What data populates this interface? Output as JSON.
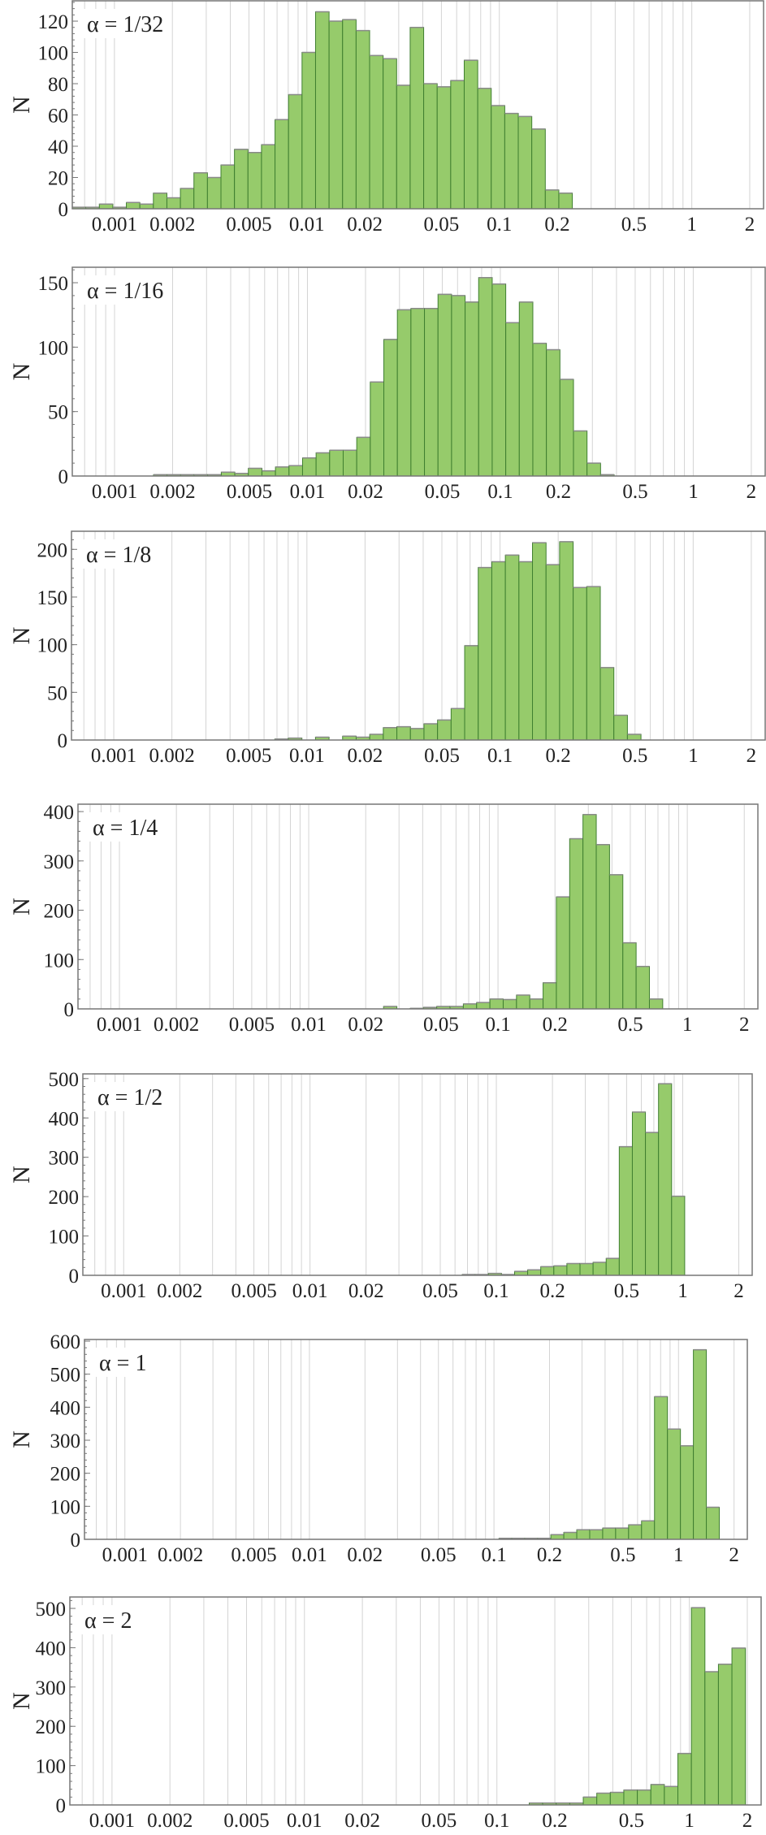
{
  "figure": {
    "colors": {
      "bar_fill": "#96cb6b",
      "bar_edge": "#3f7f30",
      "bar_top": "#8a8a8a",
      "grid": "#d4d4d4",
      "frame": "#777777",
      "text": "#222222"
    },
    "x_tick_labels": [
      "0.001",
      "0.002",
      "0.005",
      "0.01",
      "0.02",
      "0.05",
      "0.1",
      "0.2",
      "0.5",
      "1",
      "2"
    ],
    "x_tick_values": [
      0.001,
      0.002,
      0.005,
      0.01,
      0.02,
      0.05,
      0.1,
      0.2,
      0.5,
      1,
      2
    ]
  },
  "chart_data": [
    {
      "type": "bar",
      "histogram": true,
      "label": "α = 1/32",
      "ylabel": "N",
      "xlabel": "",
      "x_scale": "log",
      "xlim": [
        0.000604,
        2.36
      ],
      "grid": "vertical log grid",
      "ylim": [
        0,
        133
      ],
      "yticks": [
        "0",
        "20",
        "40",
        "60",
        "80",
        "100",
        "120"
      ],
      "first_bin_left": 0.000604,
      "bin_ratio": 1.1755,
      "counts": [
        1,
        1,
        3,
        1,
        4,
        3,
        10,
        7,
        13,
        23,
        20,
        28,
        38,
        36,
        41,
        57,
        73,
        100,
        126,
        120,
        121,
        114,
        98,
        96,
        79,
        116,
        80,
        78,
        82,
        95,
        77,
        66,
        61,
        59,
        51,
        12,
        10
      ]
    },
    {
      "type": "bar",
      "histogram": true,
      "label": "α = 1/16",
      "ylabel": "N",
      "xlabel": "",
      "x_scale": "log",
      "xlim": [
        0.000604,
        2.36
      ],
      "grid": "vertical log grid",
      "ylim": [
        0,
        162
      ],
      "yticks": [
        "0",
        "50",
        "100",
        "150"
      ],
      "first_bin_left": 0.001593,
      "bin_ratio": 1.1755,
      "counts": [
        1,
        1,
        1,
        1,
        1,
        3,
        2,
        6,
        4,
        7,
        8,
        14,
        18,
        20,
        20,
        30,
        73,
        106,
        129,
        130,
        130,
        141,
        140,
        135,
        154,
        149,
        119,
        135,
        103,
        98,
        75,
        35,
        10,
        1
      ]
    },
    {
      "type": "bar",
      "histogram": true,
      "label": "α = 1/8",
      "ylabel": "N",
      "xlabel": "",
      "x_scale": "log",
      "xlim": [
        0.000604,
        2.36
      ],
      "grid": "vertical log grid",
      "ylim": [
        0,
        219
      ],
      "yticks": [
        "0",
        "50",
        "100",
        "150",
        "200"
      ],
      "first_bin_left": 0.00682,
      "bin_ratio": 1.1755,
      "counts": [
        1,
        2,
        0,
        3,
        0,
        4,
        3,
        6,
        13,
        14,
        12,
        17,
        21,
        33,
        99,
        181,
        187,
        194,
        187,
        207,
        184,
        208,
        160,
        161,
        76,
        26,
        6
      ]
    },
    {
      "type": "bar",
      "histogram": true,
      "label": "α = 1/4",
      "ylabel": "N",
      "xlabel": "",
      "x_scale": "log",
      "xlim": [
        0.000604,
        2.36
      ],
      "grid": "vertical log grid",
      "ylim": [
        0,
        415
      ],
      "yticks": [
        "0",
        "100",
        "200",
        "300",
        "400"
      ],
      "first_bin_left": 0.02486,
      "bin_ratio": 1.1755,
      "counts": [
        5,
        0,
        1,
        3,
        5,
        5,
        10,
        13,
        20,
        19,
        28,
        20,
        53,
        227,
        345,
        394,
        333,
        272,
        134,
        86,
        20
      ]
    },
    {
      "type": "bar",
      "histogram": true,
      "label": "α = 1/2",
      "ylabel": "N",
      "xlabel": "",
      "x_scale": "log",
      "xlim": [
        0.000604,
        2.36
      ],
      "grid": "vertical log grid",
      "ylim": [
        0,
        512
      ],
      "yticks": [
        "0",
        "100",
        "200",
        "300",
        "400",
        "500"
      ],
      "first_bin_left": 0.0656,
      "bin_ratio": 1.1755,
      "counts": [
        2,
        2,
        5,
        2,
        10,
        14,
        22,
        24,
        30,
        30,
        33,
        43,
        327,
        415,
        363,
        487,
        201
      ]
    },
    {
      "type": "bar",
      "histogram": true,
      "label": "α = 1",
      "ylabel": "N",
      "xlabel": "",
      "x_scale": "log",
      "xlim": [
        0.000604,
        2.36
      ],
      "grid": "vertical log grid",
      "ylim": [
        0,
        605
      ],
      "yticks": [
        "0",
        "100",
        "200",
        "300",
        "400",
        "500",
        "600"
      ],
      "first_bin_left": 0.1065,
      "bin_ratio": 1.1755,
      "counts": [
        3,
        3,
        3,
        3,
        14,
        21,
        29,
        29,
        34,
        34,
        44,
        56,
        432,
        334,
        283,
        574,
        97
      ]
    },
    {
      "type": "bar",
      "histogram": true,
      "label": "α = 2",
      "ylabel": "N",
      "xlabel": "",
      "x_scale": "log",
      "xlim": [
        0.000604,
        2.36
      ],
      "grid": "vertical log grid",
      "ylim": [
        0,
        529
      ],
      "yticks": [
        "0",
        "100",
        "200",
        "300",
        "400",
        "500"
      ],
      "first_bin_left": 0.1472,
      "bin_ratio": 1.1755,
      "counts": [
        5,
        5,
        5,
        5,
        20,
        30,
        32,
        38,
        38,
        52,
        47,
        131,
        502,
        339,
        358,
        399
      ]
    }
  ]
}
